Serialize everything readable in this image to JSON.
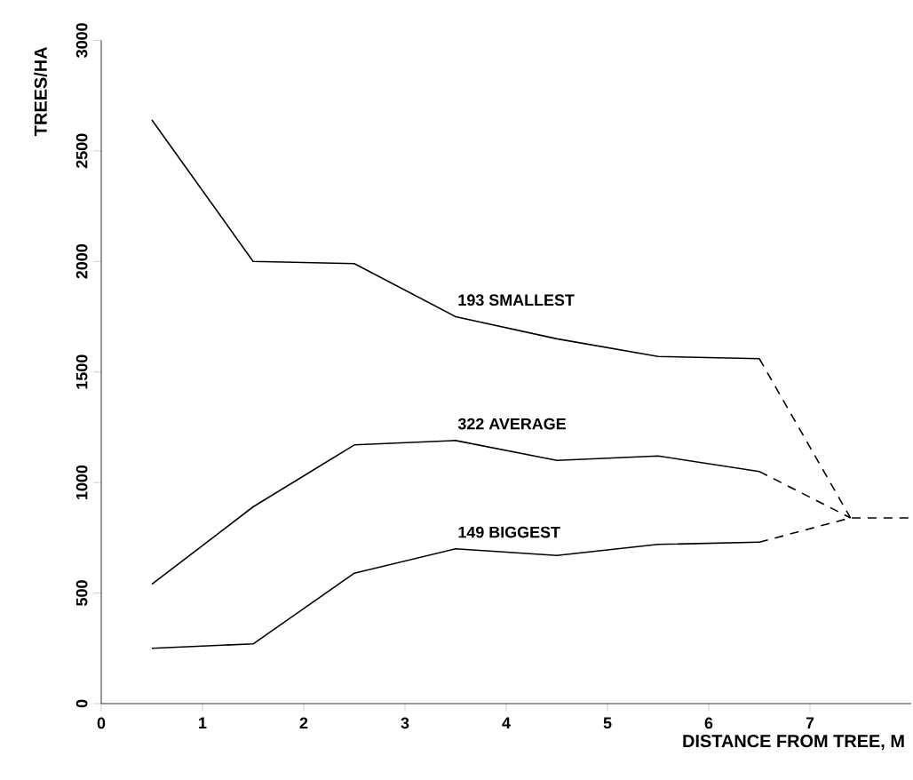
{
  "chart_data": {
    "type": "line",
    "xlabel": "DISTANCE FROM TREE, M",
    "ylabel": "TREES/HA",
    "xlim": [
      0,
      8
    ],
    "xticks": [
      0,
      1,
      2,
      3,
      4,
      5,
      6,
      7
    ],
    "ylim": [
      0,
      3000
    ],
    "yticks": [
      0,
      500,
      1000,
      1500,
      2000,
      2500,
      3000
    ],
    "grid": false,
    "legend": false,
    "series": [
      {
        "name": "193 SMALLEST",
        "color": "#000000",
        "line_style": "solid",
        "x": [
          0.5,
          1.5,
          2.5,
          3.5,
          4.5,
          5.5,
          6.5
        ],
        "values": [
          2640,
          2000,
          1990,
          1750,
          1650,
          1570,
          1560
        ]
      },
      {
        "name": "322 AVERAGE",
        "color": "#000000",
        "line_style": "solid",
        "x": [
          0.5,
          1.5,
          2.5,
          3.5,
          4.5,
          5.5,
          6.5
        ],
        "values": [
          540,
          890,
          1170,
          1190,
          1100,
          1120,
          1050
        ]
      },
      {
        "name": "149 BIGGEST",
        "color": "#000000",
        "line_style": "solid",
        "x": [
          0.5,
          1.5,
          2.5,
          3.5,
          4.5,
          5.5,
          6.5
        ],
        "values": [
          250,
          270,
          590,
          700,
          670,
          720,
          730
        ]
      },
      {
        "color": "#000000",
        "line_style": "dashed",
        "x": [
          6.5,
          7.4
        ],
        "values": [
          1560,
          840
        ]
      },
      {
        "color": "#000000",
        "line_style": "dashed",
        "x": [
          6.5,
          7.4
        ],
        "values": [
          1050,
          840
        ]
      },
      {
        "color": "#000000",
        "line_style": "dashed",
        "x": [
          6.5,
          7.4,
          8.0
        ],
        "values": [
          730,
          840,
          840
        ]
      }
    ]
  }
}
